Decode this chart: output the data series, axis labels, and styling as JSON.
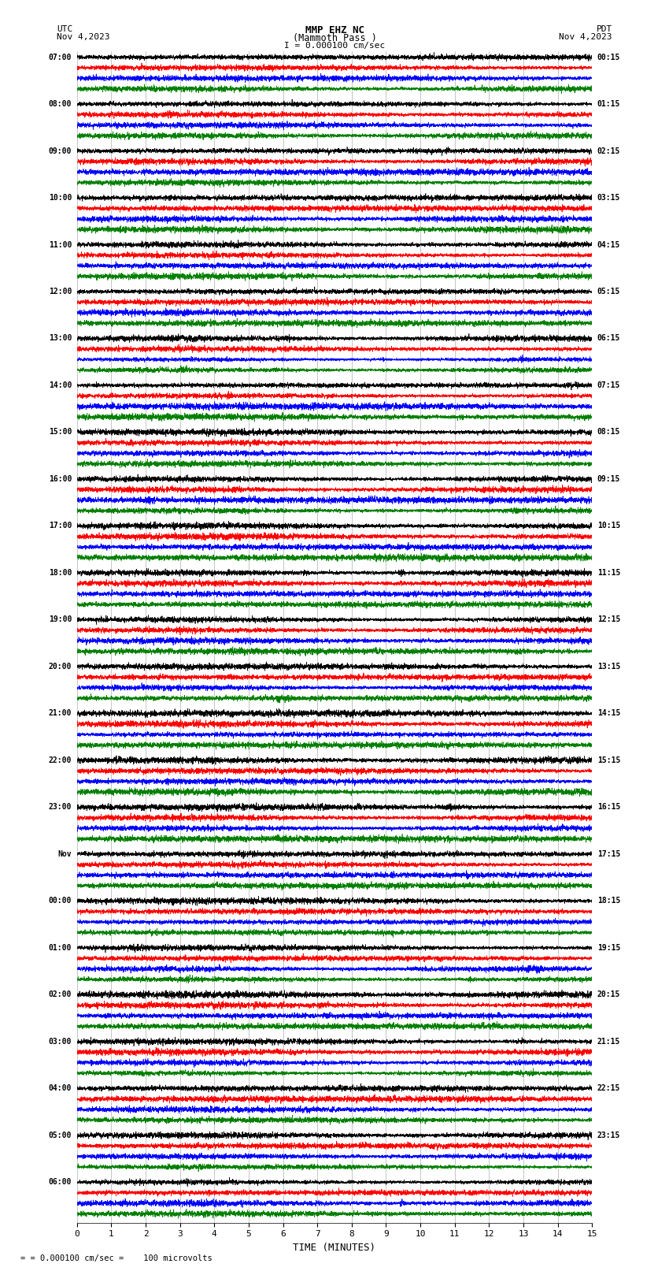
{
  "title_line1": "MMP EHZ NC",
  "title_line2": "(Mammoth Pass )",
  "scale_text": "I = 0.000100 cm/sec",
  "bottom_text": "= 0.000100 cm/sec =    100 microvolts",
  "left_label_top": "UTC",
  "left_label_date": "Nov 4,2023",
  "right_label_top": "PDT",
  "right_label_date": "Nov 4,2023",
  "xlabel": "TIME (MINUTES)",
  "utc_times_left": [
    "07:00",
    "08:00",
    "09:00",
    "10:00",
    "11:00",
    "12:00",
    "13:00",
    "14:00",
    "15:00",
    "16:00",
    "17:00",
    "18:00",
    "19:00",
    "20:00",
    "21:00",
    "22:00",
    "23:00",
    "Nov",
    "00:00",
    "01:00",
    "02:00",
    "03:00",
    "04:00",
    "05:00",
    "06:00"
  ],
  "pdt_times_right": [
    "00:15",
    "01:15",
    "02:15",
    "03:15",
    "04:15",
    "05:15",
    "06:15",
    "07:15",
    "08:15",
    "09:15",
    "10:15",
    "11:15",
    "12:15",
    "13:15",
    "14:15",
    "15:15",
    "16:15",
    "17:15",
    "18:15",
    "19:15",
    "20:15",
    "21:15",
    "22:15",
    "23:15"
  ],
  "colors": [
    "black",
    "red",
    "blue",
    "green"
  ],
  "background_color": "white",
  "xmin": 0,
  "xmax": 15,
  "num_rows": 25,
  "num_traces_per_row": 4,
  "seed": 12345,
  "N_points": 4500
}
